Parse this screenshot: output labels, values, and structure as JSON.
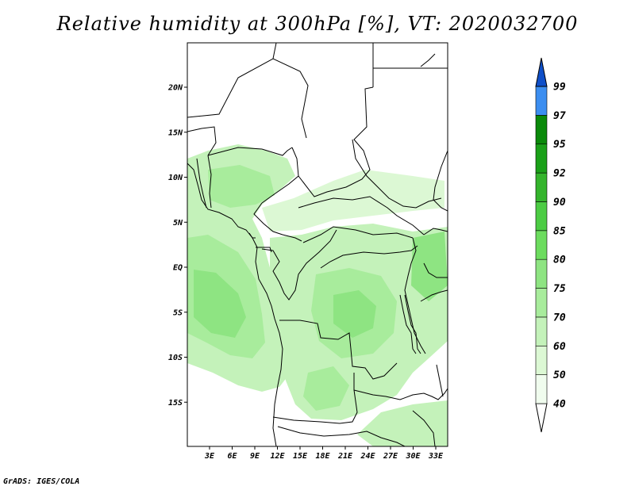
{
  "title": "Relative humidity at 300hPa [%], VT: 2020032700",
  "credit": "GrADS: IGES/COLA",
  "map": {
    "lat_ticks": [
      {
        "lat": 20,
        "label": "20N"
      },
      {
        "lat": 15,
        "label": "15N"
      },
      {
        "lat": 10,
        "label": "10N"
      },
      {
        "lat": 5,
        "label": "5N"
      },
      {
        "lat": 0,
        "label": "EQ"
      },
      {
        "lat": -5,
        "label": "5S"
      },
      {
        "lat": -10,
        "label": "10S"
      },
      {
        "lat": -15,
        "label": "15S"
      }
    ],
    "lon_ticks": [
      {
        "lon": 3,
        "label": "3E"
      },
      {
        "lon": 6,
        "label": "6E"
      },
      {
        "lon": 9,
        "label": "9E"
      },
      {
        "lon": 12,
        "label": "12E"
      },
      {
        "lon": 15,
        "label": "15E"
      },
      {
        "lon": 18,
        "label": "18E"
      },
      {
        "lon": 21,
        "label": "21E"
      },
      {
        "lon": 24,
        "label": "24E"
      },
      {
        "lon": 27,
        "label": "27E"
      },
      {
        "lon": 30,
        "label": "30E"
      },
      {
        "lon": 33,
        "label": "33E"
      }
    ]
  },
  "colorbar": {
    "levels": [
      "40",
      "50",
      "60",
      "70",
      "75",
      "80",
      "85",
      "90",
      "92",
      "95",
      "97",
      "99"
    ],
    "colors": [
      "#f0fcee",
      "#dcf8d4",
      "#c4f2ba",
      "#a8ec9c",
      "#8ee482",
      "#6cdc5e",
      "#4ccc44",
      "#34b42c",
      "#1aa018",
      "#0a8a0a",
      "#3c8ef0",
      "#1e6ad8",
      "#0f4fc8"
    ],
    "below_color": "#ffffff"
  }
}
